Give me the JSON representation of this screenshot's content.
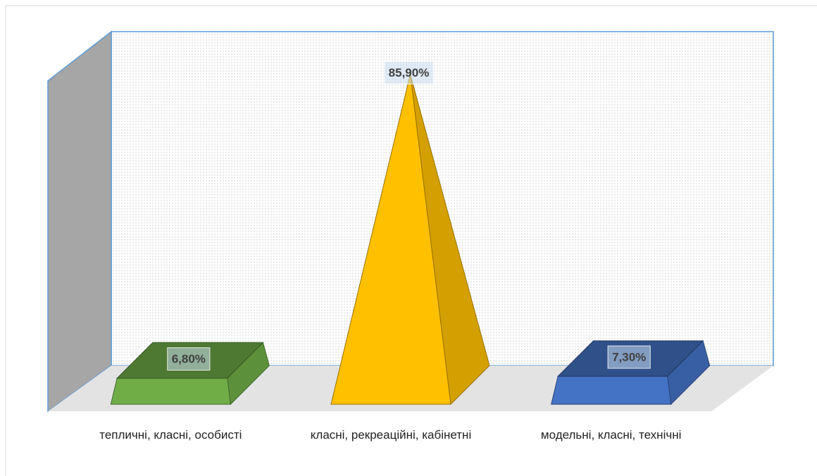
{
  "chart_data": {
    "type": "pyramid",
    "categories": [
      "тепличні, класні, особисті",
      "класні, рекреаційні, кабінетні",
      "модельні, класні, технічні"
    ],
    "values": [
      6.8,
      85.9,
      7.3
    ],
    "value_labels": [
      "6,80%",
      "85,90%",
      "7,30%"
    ],
    "colors": [
      "#70ad47",
      "#ffc000",
      "#4472c4"
    ]
  }
}
